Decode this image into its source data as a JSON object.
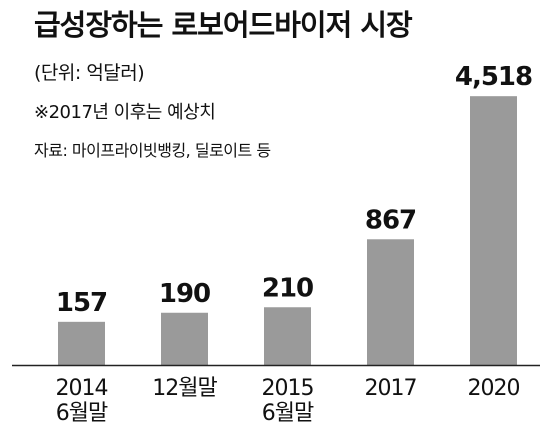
{
  "title": "급성장하는 로보어드바이저 시장",
  "unit_note": "(단위: 억달러)",
  "forecast_note": "※2017년 이후는 예상치",
  "source_note": "자료: 마이프라이빗뱅킹, 딜로이트 등",
  "colors": {
    "bar": "#9a9a9a",
    "baseline": "#222222",
    "text": "#111111"
  },
  "chart_data": {
    "type": "bar",
    "categories": [
      [
        "2014",
        "6월말"
      ],
      [
        "12월말"
      ],
      [
        "2015",
        "6월말"
      ],
      [
        "2017"
      ],
      [
        "2020"
      ]
    ],
    "values": [
      157,
      190,
      210,
      867,
      4518
    ],
    "value_labels": [
      "157",
      "190",
      "210",
      "867",
      "4,518"
    ],
    "title": "급성장하는 로보어드바이저 시장",
    "ylabel": "",
    "xlabel": "",
    "grid": false,
    "legend": "none"
  }
}
